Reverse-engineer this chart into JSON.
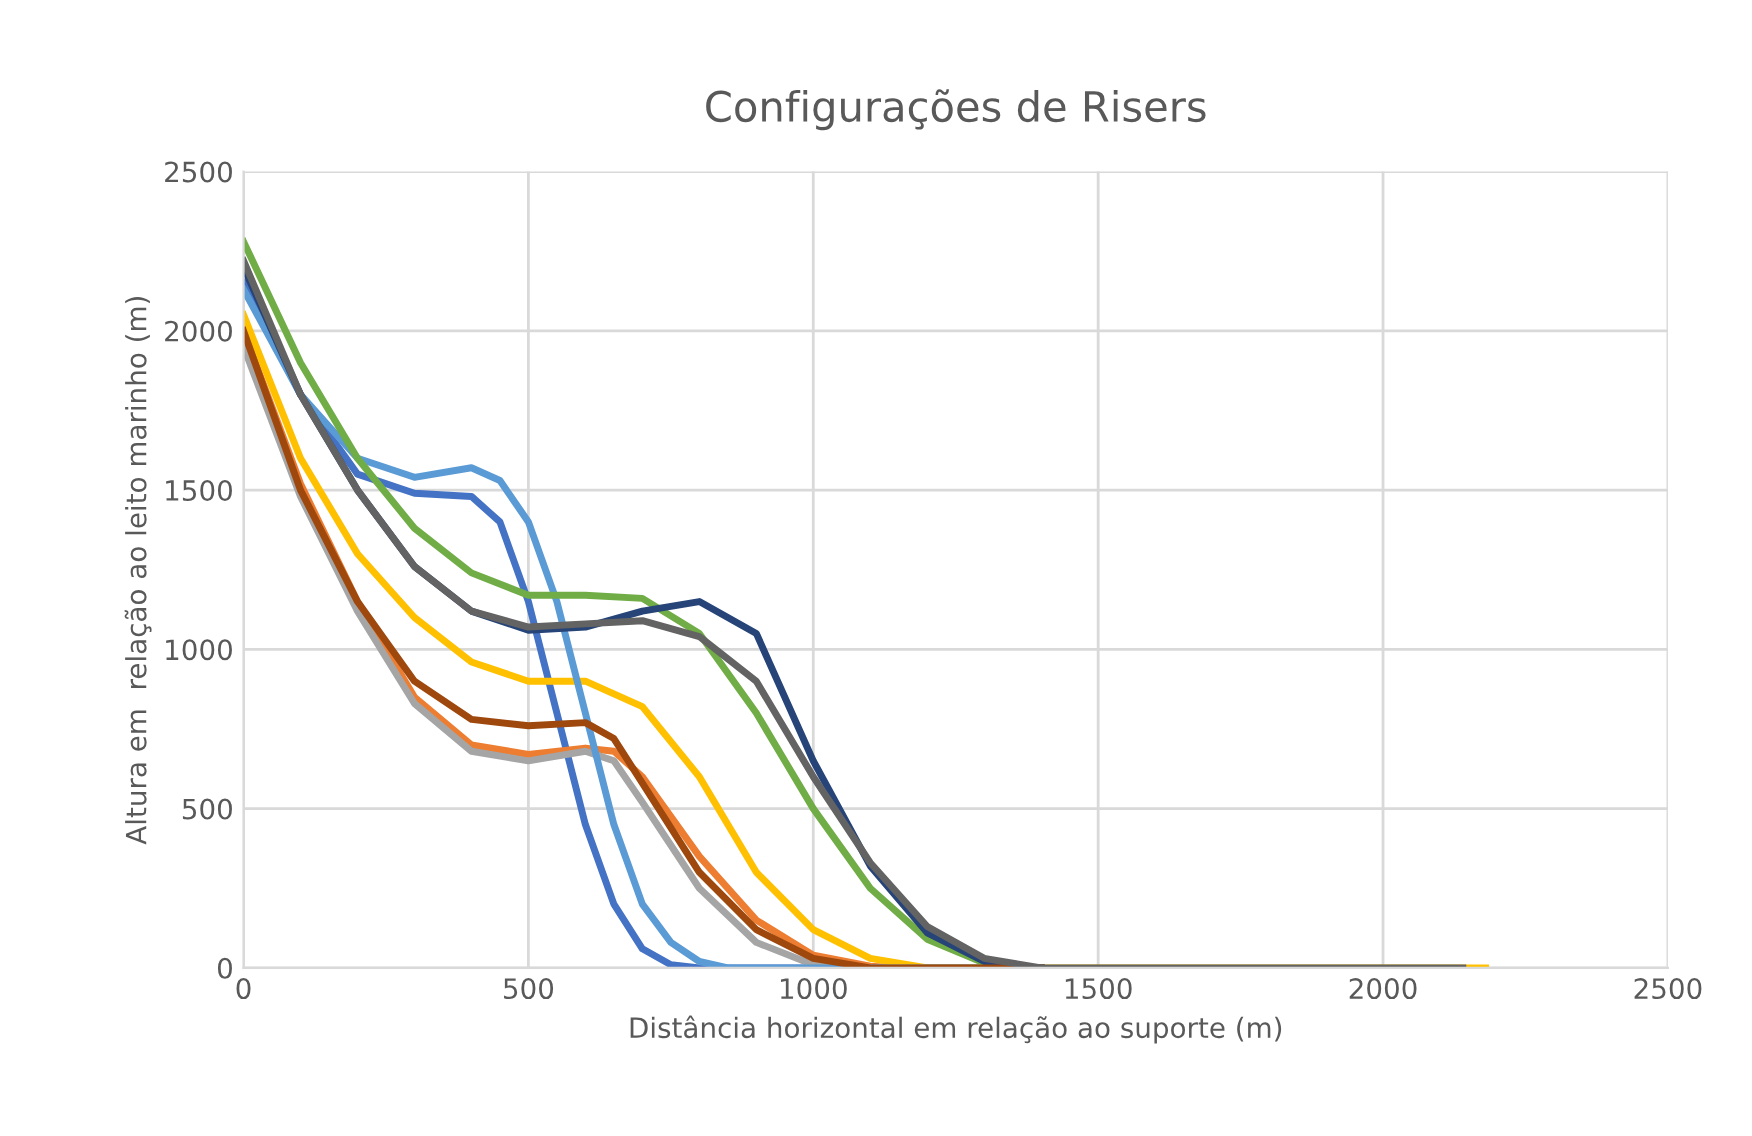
{
  "chart_data": {
    "type": "line",
    "title": "Configurações de Risers",
    "xlabel": "Distância horizontal em relação ao suporte (m)",
    "ylabel": "Altura em  relação ao leito marinho (m)",
    "xlim": [
      0,
      2500
    ],
    "ylim": [
      0,
      2500
    ],
    "xticks": [
      0,
      500,
      1000,
      1500,
      2000,
      2500
    ],
    "yticks": [
      0,
      500,
      1000,
      1500,
      2000,
      2500
    ],
    "grid": true,
    "marker": "none",
    "line_style": "solid",
    "series": [
      {
        "color": "#4472c4",
        "x": [
          0,
          100,
          200,
          300,
          400,
          450,
          500,
          550,
          600,
          650,
          700,
          750,
          800,
          1400
        ],
        "values": [
          2150,
          1800,
          1550,
          1490,
          1480,
          1400,
          1150,
          800,
          450,
          200,
          60,
          10,
          0,
          0
        ]
      },
      {
        "color": "#ed7d31",
        "x": [
          0,
          100,
          200,
          300,
          400,
          500,
          600,
          650,
          700,
          800,
          900,
          1000,
          1100,
          1150,
          1400
        ],
        "values": [
          2000,
          1520,
          1150,
          850,
          700,
          670,
          690,
          680,
          600,
          350,
          150,
          40,
          5,
          0,
          0
        ]
      },
      {
        "color": "#a5a5a5",
        "x": [
          0,
          100,
          200,
          300,
          400,
          500,
          600,
          650,
          700,
          800,
          900,
          1000,
          1050,
          1400
        ],
        "values": [
          1950,
          1480,
          1120,
          830,
          680,
          650,
          680,
          650,
          520,
          250,
          80,
          10,
          0,
          0
        ]
      },
      {
        "color": "#ffc000",
        "x": [
          0,
          100,
          200,
          300,
          400,
          500,
          600,
          700,
          800,
          850,
          900,
          1000,
          1100,
          1200,
          2180
        ],
        "values": [
          2050,
          1600,
          1300,
          1100,
          960,
          900,
          900,
          820,
          600,
          450,
          300,
          120,
          30,
          0,
          0
        ]
      },
      {
        "color": "#5b9bd5",
        "x": [
          0,
          100,
          200,
          300,
          400,
          450,
          500,
          550,
          600,
          650,
          700,
          750,
          800,
          850,
          1400
        ],
        "values": [
          2130,
          1800,
          1600,
          1540,
          1570,
          1530,
          1400,
          1150,
          800,
          450,
          200,
          80,
          20,
          0,
          0
        ]
      },
      {
        "color": "#70ad47",
        "x": [
          0,
          100,
          200,
          300,
          400,
          500,
          600,
          700,
          800,
          900,
          1000,
          1100,
          1200,
          1300,
          1350,
          1400
        ],
        "values": [
          2280,
          1900,
          1600,
          1380,
          1240,
          1170,
          1170,
          1160,
          1050,
          800,
          500,
          250,
          90,
          15,
          0,
          0
        ]
      },
      {
        "color": "#264478",
        "x": [
          0,
          100,
          200,
          300,
          400,
          500,
          600,
          700,
          800,
          900,
          1000,
          1100,
          1200,
          1300,
          1370,
          1400
        ],
        "values": [
          2200,
          1800,
          1500,
          1260,
          1120,
          1060,
          1070,
          1120,
          1150,
          1050,
          650,
          320,
          110,
          20,
          0,
          0
        ]
      },
      {
        "color": "#9e480e",
        "x": [
          0,
          100,
          200,
          300,
          400,
          500,
          600,
          650,
          700,
          800,
          900,
          1000,
          1100,
          1400
        ],
        "values": [
          2000,
          1500,
          1150,
          900,
          780,
          760,
          770,
          720,
          580,
          300,
          120,
          30,
          0,
          0
        ]
      },
      {
        "color": "#636363",
        "x": [
          0,
          100,
          200,
          300,
          400,
          500,
          600,
          700,
          800,
          900,
          1000,
          1100,
          1200,
          1300,
          1400,
          2140
        ],
        "values": [
          2220,
          1800,
          1500,
          1260,
          1120,
          1070,
          1080,
          1090,
          1040,
          900,
          600,
          330,
          130,
          30,
          0,
          0
        ]
      }
    ]
  }
}
